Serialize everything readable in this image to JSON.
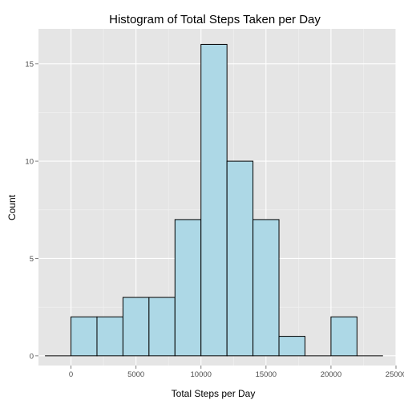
{
  "chart_data": {
    "type": "bar",
    "title": "Histogram of Total Steps Taken per Day",
    "xlabel": "Total Steps per Day",
    "ylabel": "Count",
    "xlim": [
      -2500,
      25000
    ],
    "ylim": [
      -0.5,
      16.8
    ],
    "x_ticks": [
      0,
      5000,
      10000,
      15000,
      20000,
      25000
    ],
    "y_ticks": [
      0,
      5,
      10,
      15
    ],
    "bins": [
      {
        "start": -2000,
        "end": 0,
        "count": 0
      },
      {
        "start": 0,
        "end": 2000,
        "count": 2
      },
      {
        "start": 2000,
        "end": 4000,
        "count": 2
      },
      {
        "start": 4000,
        "end": 6000,
        "count": 3
      },
      {
        "start": 6000,
        "end": 8000,
        "count": 3
      },
      {
        "start": 8000,
        "end": 10000,
        "count": 7
      },
      {
        "start": 10000,
        "end": 12000,
        "count": 16
      },
      {
        "start": 12000,
        "end": 14000,
        "count": 10
      },
      {
        "start": 14000,
        "end": 16000,
        "count": 7
      },
      {
        "start": 16000,
        "end": 18000,
        "count": 1
      },
      {
        "start": 18000,
        "end": 20000,
        "count": 0
      },
      {
        "start": 20000,
        "end": 22000,
        "count": 2
      },
      {
        "start": 22000,
        "end": 24000,
        "count": 0
      }
    ],
    "grid": true,
    "colors": {
      "panel_background": "#e5e5e5",
      "grid_major": "#ffffff",
      "grid_minor": "#f2f2f2",
      "bar_fill": "#add8e6",
      "bar_stroke": "#000000"
    }
  }
}
